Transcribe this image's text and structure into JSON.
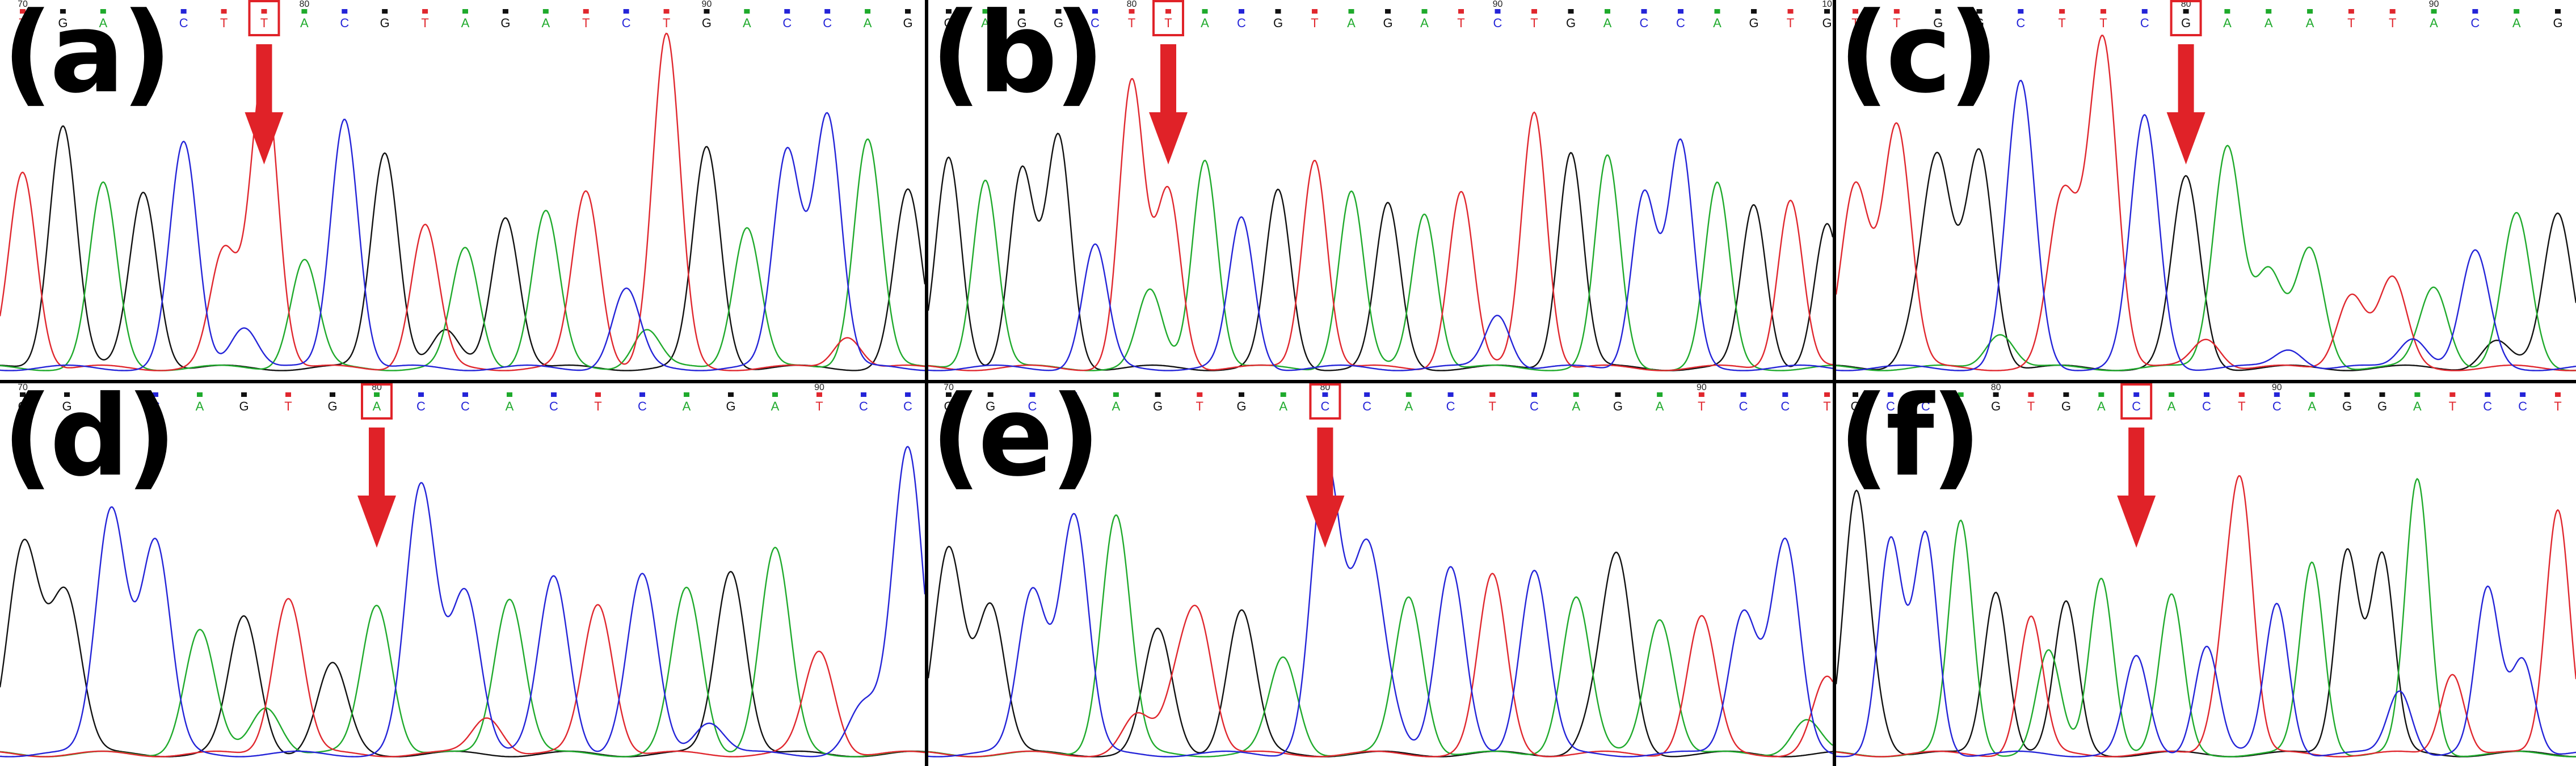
{
  "colors": {
    "A": "#1faa2c",
    "C": "#2424d8",
    "G": "#111111",
    "T": "#e0272e",
    "arrow": "#e02228",
    "box": "#e02228",
    "divider": "#000000"
  },
  "panels": [
    {
      "label": "(a)",
      "bases": [
        "T",
        "G",
        "A",
        "G",
        "C",
        "T",
        "T",
        "A",
        "C",
        "G",
        "T",
        "A",
        "G",
        "A",
        "T",
        "C",
        "T",
        "G",
        "A",
        "C",
        "C",
        "A",
        "G"
      ],
      "numbers": [
        {
          "text": "70",
          "base": 0
        },
        {
          "text": "80",
          "base": 7
        },
        {
          "text": "90",
          "base": 17
        }
      ],
      "marked": 6,
      "heights": [
        0.58,
        0.72,
        0.54,
        0.52,
        0.66,
        0.34,
        0.88,
        0.32,
        0.74,
        0.64,
        0.42,
        0.35,
        0.45,
        0.46,
        0.52,
        0.23,
        0.98,
        0.65,
        0.42,
        0.64,
        0.75,
        0.68,
        0.52,
        0.57,
        0.48,
        0.52,
        0.44
      ]
    },
    {
      "label": "(b)",
      "bases": [
        "G",
        "A",
        "G",
        "G",
        "C",
        "T",
        "T",
        "A",
        "C",
        "G",
        "T",
        "A",
        "G",
        "A",
        "T",
        "C",
        "T",
        "G",
        "A",
        "C",
        "C",
        "A",
        "G",
        "T",
        "G"
      ],
      "numbers": [
        {
          "text": "80",
          "base": 5
        },
        {
          "text": "90",
          "base": 15
        },
        {
          "text": "10",
          "base": 24
        }
      ],
      "marked": 6,
      "heights": [
        0.62,
        0.56,
        0.58,
        0.68,
        0.36,
        0.84,
        0.52,
        0.62,
        0.44,
        0.52,
        0.62,
        0.52,
        0.48,
        0.46,
        0.52,
        0.16,
        0.76,
        0.64,
        0.62,
        0.52,
        0.66,
        0.54,
        0.48,
        0.5,
        0.42,
        1.02
      ]
    },
    {
      "label": "(c)",
      "bases": [
        "T",
        "T",
        "G",
        "G",
        "C",
        "T",
        "T",
        "C",
        "G",
        "A",
        "A",
        "A",
        "T",
        "T",
        "A",
        "C",
        "A",
        "G"
      ],
      "numbers": [
        {
          "text": "80",
          "base": 8
        },
        {
          "text": "90",
          "base": 14
        }
      ],
      "marked": 8,
      "heights": [
        0.54,
        0.72,
        0.58,
        0.64,
        0.84,
        0.48,
        0.95,
        0.74,
        0.56,
        0.66,
        0.28,
        0.35,
        0.22,
        0.26,
        0.24,
        0.34,
        0.45,
        0.46,
        0.4,
        0.26,
        0.36,
        0.48,
        0.4,
        0.42,
        0.52
      ]
    },
    {
      "label": "(d)",
      "bases": [
        "G",
        "G",
        "C",
        "C",
        "A",
        "G",
        "T",
        "G",
        "A",
        "C",
        "C",
        "A",
        "C",
        "T",
        "C",
        "A",
        "G",
        "A",
        "T",
        "C",
        "C"
      ],
      "numbers": [
        {
          "text": "70",
          "base": 0
        },
        {
          "text": "80",
          "base": 8
        },
        {
          "text": "90",
          "base": 18
        }
      ],
      "marked": 8,
      "heights": [
        0.58,
        0.44,
        0.72,
        0.62,
        0.36,
        0.4,
        0.46,
        0.26,
        0.44,
        0.78,
        0.48,
        0.46,
        0.52,
        0.44,
        0.52,
        0.48,
        0.54,
        0.6,
        0.3,
        0.14,
        0.9,
        0.64,
        0.5,
        0.44,
        0.5
      ]
    },
    {
      "label": "(e)",
      "bases": [
        "G",
        "G",
        "C",
        "C",
        "A",
        "G",
        "T",
        "G",
        "A",
        "C",
        "C",
        "A",
        "C",
        "T",
        "C",
        "A",
        "G",
        "A",
        "T",
        "C",
        "C",
        "T"
      ],
      "numbers": [
        {
          "text": "70",
          "base": 0
        },
        {
          "text": "80",
          "base": 9
        },
        {
          "text": "90",
          "base": 18
        }
      ],
      "marked": 9,
      "heights": [
        0.6,
        0.44,
        0.48,
        0.7,
        0.7,
        0.36,
        0.36,
        0.42,
        0.28,
        0.82,
        0.54,
        0.46,
        0.54,
        0.52,
        0.54,
        0.46,
        0.54,
        0.4,
        0.4,
        0.42,
        0.62,
        0.22,
        0.88,
        0.6,
        0.52,
        0.46,
        0.5,
        0.42
      ]
    },
    {
      "label": "(f)",
      "bases": [
        "G",
        "C",
        "C",
        "A",
        "G",
        "T",
        "G",
        "A",
        "C",
        "A",
        "C",
        "T",
        "C",
        "A",
        "G",
        "G",
        "A",
        "T",
        "C",
        "C",
        "T"
      ],
      "numbers": [
        {
          "text": "80",
          "base": 4
        },
        {
          "text": "90",
          "base": 12
        }
      ],
      "marked": 8,
      "heights": [
        0.72,
        0.62,
        0.64,
        0.68,
        0.48,
        0.4,
        0.44,
        0.52,
        0.28,
        0.46,
        0.32,
        0.72,
        0.44,
        0.56,
        0.6,
        0.58,
        0.8,
        0.24,
        0.48,
        0.28,
        0.72,
        0.6,
        0.58,
        0.4,
        0.62,
        0.75,
        0.58,
        0.45
      ]
    }
  ]
}
